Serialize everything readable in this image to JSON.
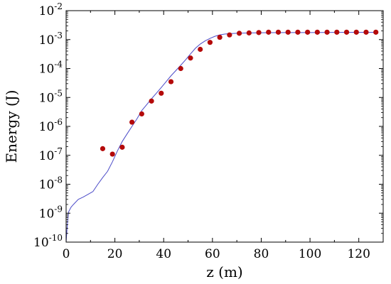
{
  "chart_data": {
    "type": "scatter",
    "xlabel": "z (m)",
    "ylabel": "Energy (J)",
    "xlim": [
      0,
      130
    ],
    "ylim_log10": [
      -10,
      -2
    ],
    "y_scale": "log",
    "x_ticks": [
      0,
      20,
      40,
      60,
      80,
      100,
      120
    ],
    "x_tick_labels": [
      "0",
      "20",
      "40",
      "60",
      "80",
      "100",
      "120"
    ],
    "y_ticks": [
      -10,
      -9,
      -8,
      -7,
      -6,
      -5,
      -4,
      -3,
      -2
    ],
    "y_tick_labels": [
      {
        "base": "10",
        "exp": "-10"
      },
      {
        "base": "10",
        "exp": "-9"
      },
      {
        "base": "10",
        "exp": "-8"
      },
      {
        "base": "10",
        "exp": "-7"
      },
      {
        "base": "10",
        "exp": "-6"
      },
      {
        "base": "10",
        "exp": "-5"
      },
      {
        "base": "10",
        "exp": "-4"
      },
      {
        "base": "10",
        "exp": "-3"
      },
      {
        "base": "10",
        "exp": "-2"
      }
    ],
    "grid": false,
    "series": [
      {
        "kind": "line",
        "color": "#4b4bc8",
        "x": [
          0,
          0.5,
          1,
          2,
          3,
          5,
          7,
          9,
          11,
          13,
          15,
          17,
          19,
          21,
          23,
          25,
          27,
          29,
          31,
          33,
          35,
          37,
          39,
          41,
          43,
          45,
          47,
          49,
          51,
          53,
          55,
          57,
          59,
          61,
          63,
          65,
          67,
          70,
          75,
          80,
          90,
          100,
          110,
          120,
          128
        ],
        "y": [
          1e-10,
          4e-10,
          1.1e-09,
          1.6e-09,
          2e-09,
          3e-09,
          3.6e-09,
          4.5e-09,
          5.6e-09,
          1e-08,
          1.7e-08,
          2.8e-08,
          6e-08,
          1.4e-07,
          3e-07,
          5.5e-07,
          1e-06,
          1.8e-06,
          3.5e-06,
          5.6e-06,
          9e-06,
          1.4e-05,
          2.2e-05,
          3.5e-05,
          5.6e-05,
          8.5e-05,
          0.00013,
          0.0002,
          0.00032,
          0.0005,
          0.0007,
          0.0009,
          0.0011,
          0.0013,
          0.00145,
          0.00155,
          0.0016,
          0.00165,
          0.0017,
          0.00172,
          0.00175,
          0.00175,
          0.00177,
          0.00178,
          0.00178
        ]
      },
      {
        "kind": "scatter",
        "color": "#b40a0a",
        "x": [
          15,
          19,
          23,
          27,
          31,
          35,
          39,
          43,
          47,
          51,
          55,
          59,
          63,
          67,
          71,
          75,
          79,
          83,
          87,
          91,
          95,
          99,
          103,
          107,
          111,
          115,
          119,
          123,
          127
        ],
        "y": [
          1.7e-07,
          1.1e-07,
          1.9e-07,
          1.4e-06,
          2.7e-06,
          7.5e-06,
          1.4e-05,
          3.5e-05,
          0.0001,
          0.00023,
          0.00046,
          0.0008,
          0.0012,
          0.00145,
          0.00165,
          0.0017,
          0.00175,
          0.0018,
          0.0018,
          0.0018,
          0.0018,
          0.0018,
          0.0018,
          0.0018,
          0.0018,
          0.0018,
          0.0018,
          0.0018,
          0.0018
        ]
      }
    ]
  }
}
